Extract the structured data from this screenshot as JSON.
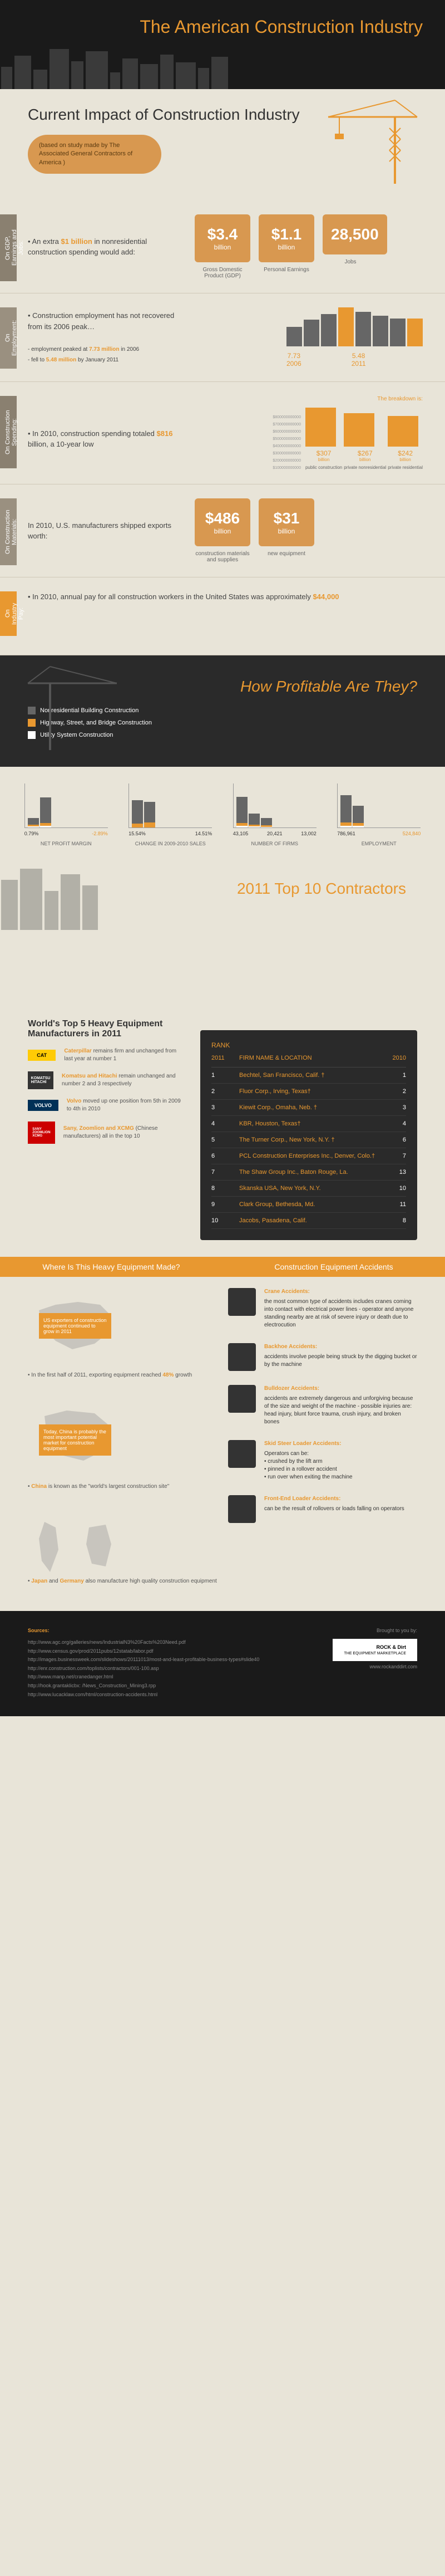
{
  "title": "The American Construction Industry",
  "section1": {
    "heading": "Current Impact of Construction Industry",
    "callout": "(based on study made by The Associated General Contractors of America )"
  },
  "rows": {
    "gdp": {
      "tab": "On GDP, Earnings and Jobs:",
      "text": "An extra $1 billion in nonresidential construction spending would add:",
      "highlight": "$1 billion",
      "stats": [
        {
          "value": "$3.4",
          "unit": "billion",
          "label": "Gross Domestic Product (GDP)"
        },
        {
          "value": "$1.1",
          "unit": "billion",
          "label": "Personal Earnings"
        },
        {
          "value": "28,500",
          "unit": "",
          "label": "Jobs"
        }
      ]
    },
    "employment": {
      "tab": "On Employment:",
      "text": "Construction employment has not recovered from its 2006 peak…",
      "sub": "- employment peaked at 7.73 million in 2006  - fell to 5.48 million by January 2011",
      "bars": [
        {
          "value": "7.73",
          "label": "2006",
          "height": 70
        },
        {
          "value": "5.48",
          "label": "2011",
          "height": 50
        }
      ]
    },
    "spending": {
      "tab": "On Construction Spending:",
      "text": "In 2010, construction spending totaled $816 billion, a 10-year low",
      "highlight": "$816",
      "breakdown_label": "The breakdown is:",
      "bars": [
        {
          "value": "$307",
          "unit": "billion",
          "label": "public construction",
          "height": 70
        },
        {
          "value": "$267",
          "unit": "billion",
          "label": "private nonresidential",
          "height": 60
        },
        {
          "value": "$242",
          "unit": "billion",
          "label": "private residential",
          "height": 55
        }
      ]
    },
    "materials": {
      "tab": "On Construction Materials:",
      "text": "In 2010, U.S. manufacturers shipped exports worth:",
      "stats": [
        {
          "value": "$486",
          "unit": "billion",
          "label": "construction materials and supplies"
        },
        {
          "value": "$31",
          "unit": "billion",
          "label": "new equipment"
        }
      ]
    },
    "pay": {
      "tab": "On Industry Pay:",
      "text": "In 2010, annual pay for all construction workers in the United States was approximately $44,000",
      "highlight": "$44,000"
    }
  },
  "profit": {
    "heading": "How Profitable Are They?",
    "legend": [
      {
        "color": "#666666",
        "label": "Nonresidential Building Construction"
      },
      {
        "color": "#e89830",
        "label": "Highway, Street, and Bridge Construction"
      },
      {
        "color": "#ffffff",
        "label": "Utility System Construction"
      }
    ],
    "charts": [
      {
        "title": "NET PROFIT MARGIN",
        "ylabels": [
          "1.00",
          "0.75",
          "0.50",
          "0.25",
          "0.00"
        ],
        "bars": [
          {
            "h": [
              22,
              5,
              3
            ]
          },
          {
            "h": [
              68,
              5,
              2
            ]
          }
        ],
        "xlabels": [
          "0.79%",
          "0.91%",
          "-2.89%"
        ]
      },
      {
        "title": "CHANGE IN 2009-2010 SALES",
        "ylabels": [
          "20%",
          "15%",
          "10%",
          "5%",
          "0%"
        ],
        "bars": [
          {
            "h": [
              62,
              8,
              0
            ]
          },
          {
            "h": [
              58,
              10,
              0
            ]
          }
        ],
        "xlabels": [
          "15.54%",
          "14.51%",
          "-1.91%"
        ]
      },
      {
        "title": "NUMBER OF FIRMS",
        "ylabels": [
          "50,000",
          "40,000",
          "30,000",
          "20,000",
          "10,000"
        ],
        "bars": [
          {
            "h": [
              70,
              5,
              3
            ]
          },
          {
            "h": [
              32,
              5,
              3
            ]
          },
          {
            "h": [
              22,
              3,
              2
            ]
          }
        ],
        "xlabels": [
          "43,105",
          "20,421",
          "13,002"
        ]
      },
      {
        "title": "EMPLOYMENT",
        "ylabels": [
          "800,000",
          "700,000",
          "600,000",
          "500,000",
          "400,000",
          "300,000",
          "200,000",
          "100,000"
        ],
        "bars": [
          {
            "h": [
              73,
              5,
              3
            ]
          },
          {
            "h": [
              50,
              5,
              3
            ]
          }
        ],
        "xlabels": [
          "786,961",
          "524,840",
          "353,184"
        ]
      }
    ]
  },
  "contractors": {
    "heading": "2011 Top 10 Contractors",
    "cols": [
      "2011",
      "FIRM NAME & LOCATION",
      "2010"
    ],
    "col_rank": "RANK",
    "rows": [
      {
        "r2011": "1",
        "name": "Bechtel, San Francisco, Calif. †",
        "r2010": "1"
      },
      {
        "r2011": "2",
        "name": "Fluor Corp., Irving, Texas†",
        "r2010": "2"
      },
      {
        "r2011": "3",
        "name": "Kiewit Corp., Omaha, Neb. †",
        "r2010": "3"
      },
      {
        "r2011": "4",
        "name": "KBR, Houston, Texas†",
        "r2010": "4"
      },
      {
        "r2011": "5",
        "name": "The Turner Corp., New York, N.Y. †",
        "r2010": "6"
      },
      {
        "r2011": "6",
        "name": "PCL Construction Enterprises Inc., Denver, Colo.†",
        "r2010": "7"
      },
      {
        "r2011": "7",
        "name": "The Shaw Group Inc., Baton Rouge, La.",
        "r2010": "13"
      },
      {
        "r2011": "8",
        "name": "Skanska USA, New York, N.Y.",
        "r2010": "10"
      },
      {
        "r2011": "9",
        "name": "Clark Group, Bethesda, Md.",
        "r2010": "11"
      },
      {
        "r2011": "10",
        "name": "Jacobs, Pasadena, Calif.",
        "r2010": "8"
      }
    ]
  },
  "equip": {
    "heading": "World's Top 5 Heavy Equipment Manufacturers in 2011",
    "items": [
      {
        "logo": "CAT",
        "text": "Caterpillar remains firm and unchanged from last year at number 1",
        "bold": "Caterpillar"
      },
      {
        "logo": "KOMATSU HITACHI",
        "text": "Komatsu and Hitachi remain unchanged and number 2 and 3 respectively",
        "bold": "Komatsu and Hitachi"
      },
      {
        "logo": "VOLVO",
        "text": "Volvo moved up one position from 5th in 2009 to 4th in 2010",
        "bold": "Volvo"
      },
      {
        "logo": "SANY ZOOMLION XCMG",
        "text": "Sany, Zoomlion and XCMG (Chinese manufacturers) all in the top 10",
        "bold": "Sany, Zoomlion and XCMG"
      }
    ]
  },
  "ribbon1": "Where Is This Heavy Equipment Made?",
  "ribbon2": "Construction Equipment Accidents",
  "maps": [
    {
      "country": "USA",
      "text": "US exporters of construction equipment continued to grow in 2011",
      "bullet": "In the first half of 2011, exporting equipment reached 48% growth",
      "bold": "48%"
    },
    {
      "country": "CHINA",
      "text": "Today, China is probably the most important potential market for construction equipment",
      "bullet": "China is known as the \"world's largest construction site\"",
      "bold": "China"
    },
    {
      "country": "JAPAN-GERMANY",
      "text": "",
      "bullet": "Japan and Germany also manufacture high quality construction equipment",
      "bold": "Japan and Germany"
    }
  ],
  "accidents": [
    {
      "title": "Crane Accidents:",
      "text": "the most common type of accidents includes cranes coming into contact with electrical power lines - operator and anyone standing nearby are at risk of severe injury or death due to electrocution"
    },
    {
      "title": "Backhoe Accidents:",
      "text": "accidents involve people being struck by the digging bucket or by the machine"
    },
    {
      "title": "Bulldozer Accidents:",
      "text": "accidents are extremely dangerous and unforgiving because of the size and weight of the machine - possible injuries are: head injury, blunt force trauma, crush injury, and broken bones"
    },
    {
      "title": "Skid Steer Loader Accidents:",
      "text": "Operators can be:\n• crushed by the lift arm\n• pinned in a rollover accident\n• run over when exiting the machine"
    },
    {
      "title": "Front-End Loader Accidents:",
      "text": "can be the result of rollovers or loads falling on operators"
    }
  ],
  "footer": {
    "sources_heading": "Sources:",
    "sources": [
      "http://www.agc.org/galleries/news/IndustrialN3%20Facts%203Need.pdf",
      "http://www.census.gov/prod/2011pubs/12statab/labor.pdf",
      "http://images.businessweek.com/slideshows/20111013/most-and-least-profitable-business-types#slide40",
      "http://enr.construction.com/toplists/contractors/001-100.asp",
      "http://www.manp.net/cranedanger.html",
      "http://hook.grantaklicbx: /News_Construction_Mining3.rpp",
      "http://www.lucacklaw.com/html/construction-accidents.html"
    ],
    "brought": "Brought to you by:",
    "logo": "ROCK & Dirt",
    "tagline": "THE EQUIPMENT MARKETPLACE",
    "url": "www.rockanddirt.com"
  },
  "colors": {
    "orange": "#e89830",
    "tan": "#d89850",
    "dark": "#2a2a2a",
    "bg": "#e8e4d8",
    "gray": "#666666"
  }
}
